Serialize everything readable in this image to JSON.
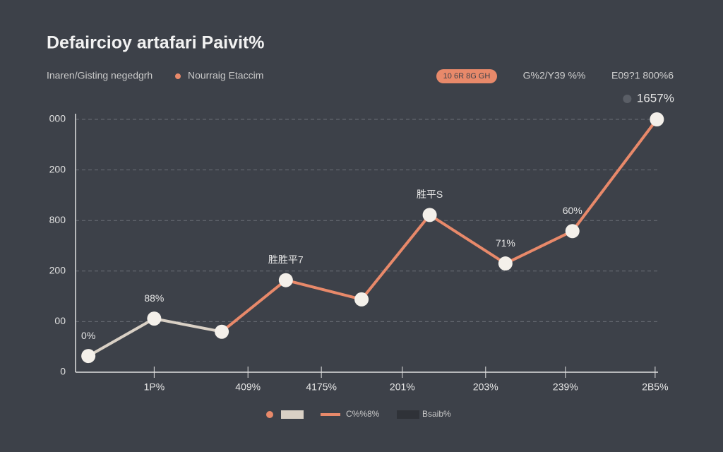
{
  "chart_data": {
    "type": "line",
    "title": "Defaircioy artafari Paivit%",
    "subtitle": "Inaren/Gisting negedgrh",
    "top_legend": {
      "label": "Nourraig Etaccim",
      "color": "#e8896a"
    },
    "badge": "10 6R 8G GH",
    "header_stats": [
      "G%2/Y39 %%",
      "E09?1 800%6"
    ],
    "xlim": [
      0,
      100
    ],
    "xticks": [
      {
        "value": 13.5,
        "label": "1P%"
      },
      {
        "value": 29.6,
        "label": "409%"
      },
      {
        "value": 42.2,
        "label": "4175%"
      },
      {
        "value": 56.1,
        "label": "201%"
      },
      {
        "value": 70.4,
        "label": "203%"
      },
      {
        "value": 84.1,
        "label": "239%"
      },
      {
        "value": 99.5,
        "label": "2B5%"
      }
    ],
    "ylim": [
      0,
      5
    ],
    "yticks": [
      {
        "value": 0,
        "label": "0"
      },
      {
        "value": 1,
        "label": "00"
      },
      {
        "value": 2,
        "label": "200"
      },
      {
        "value": 3,
        "label": "800"
      },
      {
        "value": 4,
        "label": "200"
      },
      {
        "value": 5,
        "label": "000"
      }
    ],
    "grid": true,
    "series": [
      {
        "name": "C%%8%",
        "color": "#e8896a",
        "x": [
          2.2,
          13.5,
          25.1,
          36.1,
          49.1,
          60.8,
          73.8,
          85.3,
          99.8
        ],
        "values": [
          0.32,
          1.06,
          0.8,
          1.82,
          1.44,
          3.11,
          2.15,
          2.79,
          5.0
        ],
        "lead_color": "#d9d0c5",
        "lead_segments": 2,
        "annotations": [
          "0%",
          "88%",
          null,
          "胜胜平7",
          null,
          "胜平S",
          "71%",
          "60%",
          "1657%"
        ]
      }
    ],
    "bottom_legend": [
      {
        "color": "#e8896a",
        "marker": "dot"
      },
      {
        "color": "#d9d0c5",
        "marker": "rect"
      },
      {
        "name": "C%%8%",
        "color": "#e8896a",
        "marker": "line"
      },
      {
        "name": "Bsaib%",
        "color": "#2f3238",
        "marker": "rect"
      }
    ]
  }
}
